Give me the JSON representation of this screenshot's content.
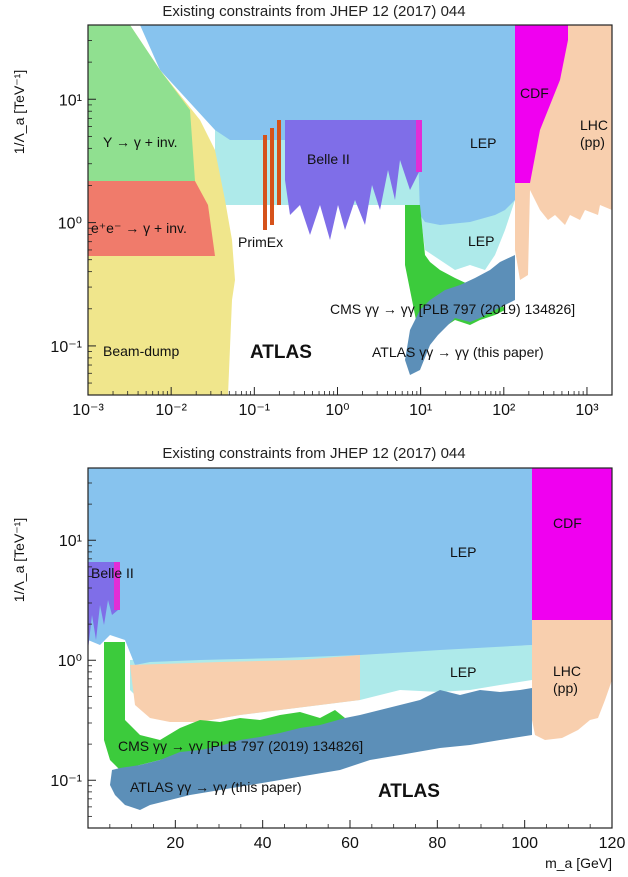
{
  "chart_data": [
    {
      "type": "area",
      "title": "Existing constraints from JHEP 12 (2017) 044",
      "ylabel": "1/Λ_a [TeV⁻¹]",
      "xlabel": "",
      "xscale": "log",
      "yscale": "log",
      "xlim": [
        0.001,
        2000
      ],
      "ylim": [
        0.04,
        40
      ],
      "x_ticks": [
        "10⁻³",
        "10⁻²",
        "10⁻¹",
        "10⁰",
        "10¹",
        "10²",
        "10³"
      ],
      "y_ticks": [
        "10⁻¹",
        "10⁰",
        "10¹"
      ],
      "grid": false,
      "colors": {
        "beam_dump": "#f0e68c",
        "upsilon": "#90e090",
        "ee_gamma_inv": "#f07b6b",
        "lep": "#87c3ee",
        "lep_low": "#aeeaea",
        "belle": "#7f6ee8",
        "belle_edge": "#e32dd6",
        "primex": "#d6521a",
        "cdf": "#f000f0",
        "lhc": "#f8cfae",
        "cms": "#3ccb3c",
        "atlas": "#5c8fb8"
      },
      "regions": [
        {
          "name": "Beam-dump",
          "label": "Beam-dump",
          "x_min": 0.001,
          "x_max": 0.05,
          "y_range": [
            0.04,
            30
          ]
        },
        {
          "name": "Upsilon",
          "label": "Υ → γ + inv.",
          "x_min": 0.001,
          "x_max": 0.01,
          "y_range": [
            2.0,
            40
          ]
        },
        {
          "name": "ee",
          "label": "e⁺e⁻ → γ + inv.",
          "x_min": 0.001,
          "x_max": 0.03,
          "y_range": [
            0.55,
            2.0
          ]
        },
        {
          "name": "LEP",
          "label": "LEP",
          "x_min": 0.005,
          "x_max": 100,
          "y_range": [
            1.2,
            40
          ]
        },
        {
          "name": "LEP-low",
          "label": "LEP",
          "x_min": 0.1,
          "x_max": 100,
          "y_range": [
            0.5,
            6.5
          ]
        },
        {
          "name": "Belle II",
          "label": "Belle II",
          "x_min": 0.2,
          "x_max": 9.5,
          "y_range": [
            1.5,
            6.5
          ]
        },
        {
          "name": "PrimEx",
          "label": "PrimEx",
          "x_min": 0.1,
          "x_max": 0.15,
          "y_range": [
            1.2,
            5.0
          ]
        },
        {
          "name": "CDF",
          "label": "CDF",
          "x_min": 100,
          "x_max": 400,
          "y_range": [
            2.0,
            40
          ]
        },
        {
          "name": "LHC",
          "label": "LHC\n(pp)",
          "x_min": 100,
          "x_max": 2000,
          "y_range": [
            1.0,
            40
          ]
        },
        {
          "name": "CMS",
          "label": "CMS γγ → γγ [PLB 797 (2019) 134826]",
          "x_min": 5,
          "x_max": 90,
          "y_range": [
            0.15,
            1.4
          ]
        },
        {
          "name": "ATLAS",
          "label": "ATLAS γγ → γγ (this paper)",
          "x_min": 6,
          "x_max": 100,
          "y_range": [
            0.06,
            0.5
          ]
        }
      ],
      "annotation": "ATLAS"
    },
    {
      "type": "area",
      "title": "Existing constraints from JHEP 12 (2017) 044",
      "ylabel": "1/Λ_a [TeV⁻¹]",
      "xlabel": "m_a [GeV]",
      "xscale": "linear",
      "yscale": "log",
      "xlim": [
        0,
        120
      ],
      "ylim": [
        0.04,
        40
      ],
      "x_ticks": [
        "20",
        "40",
        "60",
        "80",
        "100",
        "120"
      ],
      "y_ticks": [
        "10⁻¹",
        "10⁰",
        "10¹"
      ],
      "grid": false,
      "regions": [
        {
          "name": "LEP",
          "label": "LEP",
          "x_min": 0,
          "x_max": 102,
          "y_range": [
            1.0,
            40
          ]
        },
        {
          "name": "LEP-low",
          "label": "LEP",
          "x_min": 6,
          "x_max": 102,
          "y_range": [
            0.3,
            1.4
          ]
        },
        {
          "name": "Belle II",
          "label": "Belle II",
          "x_min": 0,
          "x_max": 7.5,
          "y_range": [
            1.2,
            6.5
          ]
        },
        {
          "name": "CDF",
          "label": "CDF",
          "x_min": 102,
          "x_max": 120,
          "y_range": [
            1.5,
            40
          ]
        },
        {
          "name": "LHC",
          "label": "LHC\n(pp)",
          "x_min": 102,
          "x_max": 120,
          "y_range": [
            0.15,
            1.5
          ]
        },
        {
          "name": "CMS",
          "label": "CMS γγ → γγ [PLB 797 (2019) 134826]",
          "x_min": 5,
          "x_max": 60,
          "y_range": [
            0.12,
            1.4
          ]
        },
        {
          "name": "ATLAS",
          "label": "ATLAS γγ → γγ (this paper)",
          "x_min": 6,
          "x_max": 100,
          "y_range": [
            0.06,
            0.5
          ]
        }
      ],
      "annotation": "ATLAS"
    }
  ]
}
